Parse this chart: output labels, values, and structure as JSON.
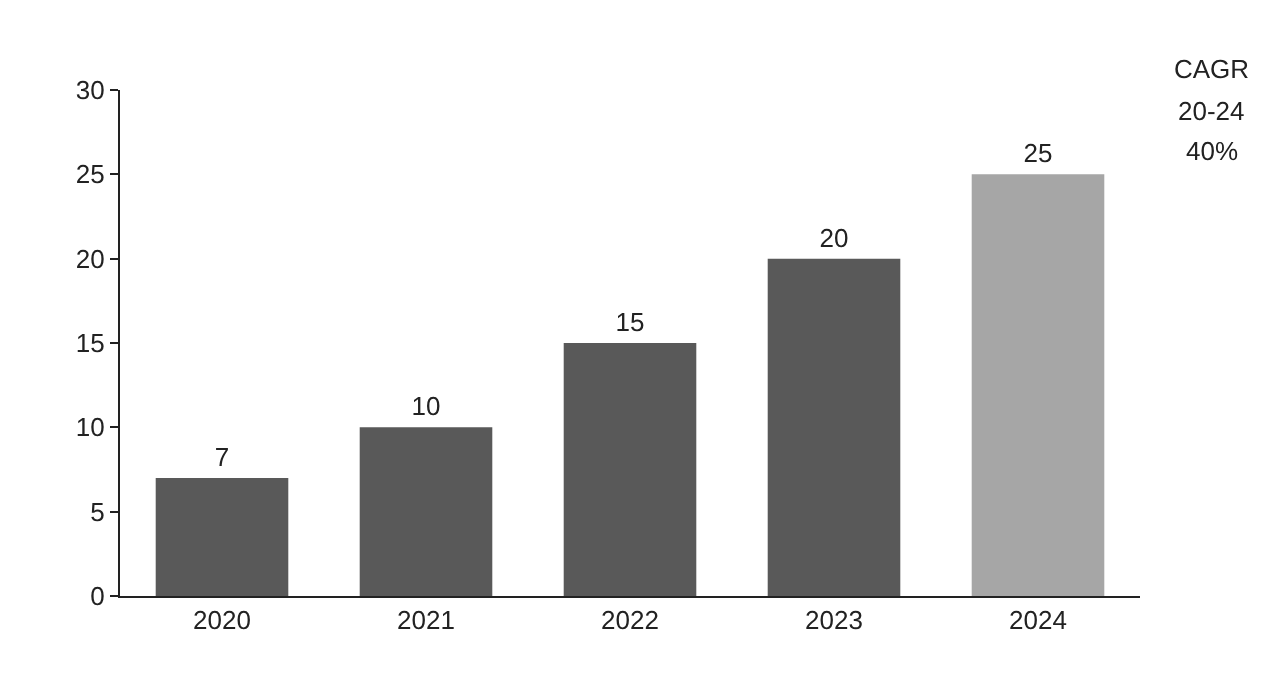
{
  "chart_data": {
    "type": "bar",
    "categories": [
      "2020",
      "2021",
      "2022",
      "2023",
      "2024"
    ],
    "values": [
      7,
      10,
      15,
      20,
      25
    ],
    "colors": [
      "#595959",
      "#595959",
      "#595959",
      "#595959",
      "#a6a6a6"
    ],
    "ylim": [
      0,
      30
    ],
    "yticks": [
      0,
      5,
      10,
      15,
      20,
      25,
      30
    ],
    "grid": false,
    "data_labels": true,
    "annotations": [
      "CAGR",
      "20-24",
      "40%"
    ]
  }
}
